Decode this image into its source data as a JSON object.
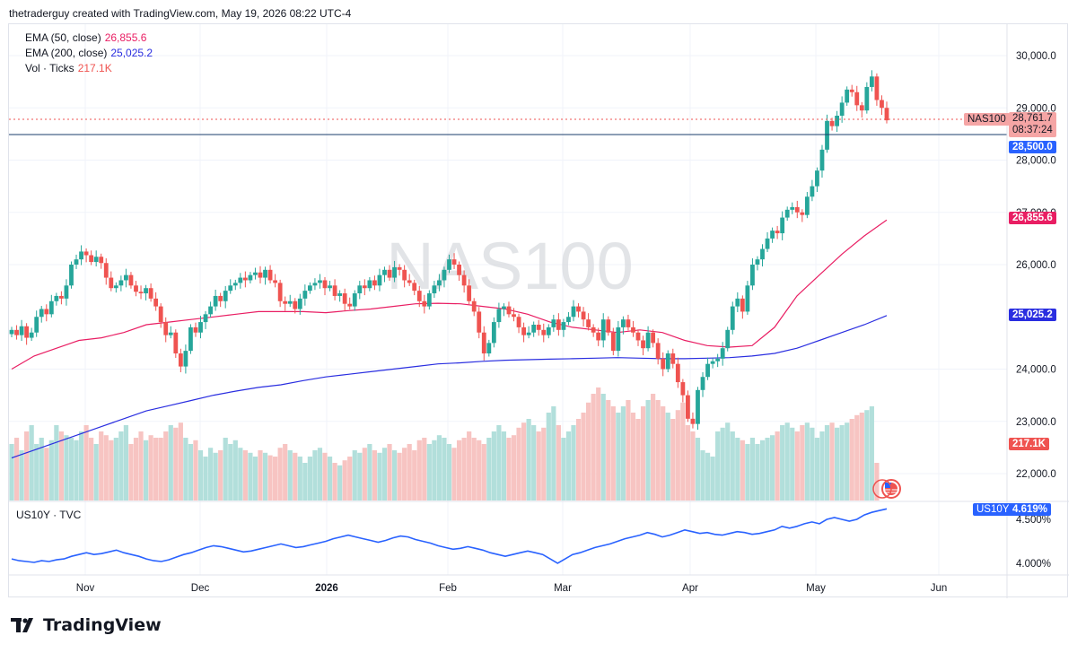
{
  "header": {
    "text": "thetraderguy created with TradingView.com, May 19, 2026 08:22 UTC-4"
  },
  "watermark": "NAS100",
  "legend": {
    "ema50": {
      "label": "EMA (50, close)",
      "value": "26,855.6",
      "color": "#e91e63"
    },
    "ema200": {
      "label": "EMA (200, close)",
      "value": "25,025.2",
      "color": "#2a2ee0"
    },
    "vol": {
      "label": "Vol · Ticks",
      "value": "217.1K",
      "color": "#ef5350"
    }
  },
  "price_labels": {
    "symbol_tag": "NAS100",
    "last_price": "28,761.7",
    "countdown": "08:37:24",
    "horizontal_line": "28,500.0",
    "ema50": "26,855.6",
    "ema200": "25,025.2",
    "volume": "217.1K"
  },
  "lower_pane": {
    "title": "US10Y · TVC",
    "symbol_tag": "US10Y",
    "value": "4.619%",
    "ticks": [
      "4.500%",
      "4.000%"
    ]
  },
  "branding": {
    "name": "TradingView"
  },
  "colors": {
    "up": "#26a69a",
    "down": "#ef5350",
    "ema50": "#e91e63",
    "ema200": "#2a2ee0",
    "us10y": "#2962ff"
  },
  "chart_data": {
    "type": "candlestick",
    "y_ticks": [
      "30,000.0",
      "29,000.0",
      "28,000.0",
      "27,000.0",
      "26,000.0",
      "24,000.0",
      "23,000.0",
      "22,000.0"
    ],
    "y_range": [
      21500,
      30600
    ],
    "x_ticks": [
      "Nov",
      "Dec",
      "2026",
      "Feb",
      "Mar",
      "Apr",
      "May",
      "Jun"
    ],
    "horizontal_line_level": 28500,
    "candles_close": [
      24750,
      24650,
      24820,
      24600,
      24700,
      25000,
      25150,
      25050,
      25300,
      25400,
      25350,
      25600,
      26000,
      26100,
      26250,
      26180,
      26050,
      26150,
      26030,
      25750,
      25550,
      25600,
      25700,
      25800,
      25600,
      25480,
      25450,
      25550,
      25350,
      25200,
      24900,
      24650,
      24700,
      24300,
      24050,
      24350,
      24800,
      24700,
      24900,
      25050,
      25200,
      25400,
      25300,
      25500,
      25600,
      25650,
      25750,
      25700,
      25800,
      25850,
      25750,
      25900,
      25700,
      25650,
      25300,
      25250,
      25300,
      25150,
      25350,
      25500,
      25600,
      25650,
      25700,
      25550,
      25600,
      25400,
      25450,
      25250,
      25200,
      25450,
      25600,
      25550,
      25700,
      25600,
      25800,
      25900,
      25750,
      25950,
      25900,
      25700,
      25650,
      25500,
      25300,
      25200,
      25450,
      25600,
      25700,
      25900,
      26100,
      26000,
      25800,
      25600,
      25300,
      25100,
      24700,
      24300,
      24500,
      24900,
      25150,
      25200,
      25050,
      25000,
      24800,
      24650,
      24700,
      24850,
      24750,
      24650,
      24800,
      24950,
      24750,
      24900,
      25000,
      25200,
      25100,
      24950,
      24800,
      24700,
      24550,
      24950,
      24700,
      24350,
      24800,
      24950,
      24800,
      24700,
      24550,
      24400,
      24700,
      24500,
      24200,
      24000,
      24300,
      24100,
      23750,
      23500,
      23050,
      22950,
      23600,
      23850,
      24100,
      24150,
      24200,
      24400,
      24750,
      25200,
      25350,
      25100,
      25600,
      26000,
      26100,
      26300,
      26500,
      26650,
      26600,
      26900,
      27050,
      27100,
      27000,
      26950,
      27300,
      27500,
      27800,
      28200,
      28750,
      28650,
      28850,
      29100,
      29350,
      29300,
      29050,
      28950,
      29400,
      29600,
      29150,
      29000,
      28762
    ],
    "ema50": [
      24000,
      24250,
      24400,
      24550,
      24600,
      24700,
      24850,
      24900,
      24950,
      25000,
      25050,
      25100,
      25100,
      25100,
      25080,
      25120,
      25150,
      25200,
      25250,
      25260,
      25250,
      25200,
      25150,
      25050,
      24900,
      24800,
      24750,
      24700,
      24750,
      24700,
      24550,
      24450,
      24420,
      24450,
      24800,
      25400,
      25800,
      26200,
      26550,
      26855.6
    ],
    "ema200": [
      22300,
      22450,
      22600,
      22750,
      22900,
      23050,
      23200,
      23300,
      23400,
      23500,
      23580,
      23650,
      23700,
      23780,
      23850,
      23900,
      23950,
      24000,
      24050,
      24100,
      24120,
      24150,
      24170,
      24180,
      24190,
      24200,
      24210,
      24220,
      24210,
      24200,
      24200,
      24210,
      24220,
      24250,
      24300,
      24400,
      24550,
      24700,
      24850,
      25025.2
    ],
    "volume": [
      0.45,
      0.5,
      0.4,
      0.55,
      0.6,
      0.45,
      0.5,
      0.42,
      0.48,
      0.6,
      0.55,
      0.52,
      0.5,
      0.48,
      0.55,
      0.6,
      0.5,
      0.45,
      0.55,
      0.52,
      0.48,
      0.5,
      0.55,
      0.6,
      0.45,
      0.5,
      0.55,
      0.48,
      0.52,
      0.5,
      0.5,
      0.55,
      0.6,
      0.58,
      0.62,
      0.5,
      0.45,
      0.48,
      0.4,
      0.35,
      0.42,
      0.38,
      0.4,
      0.5,
      0.45,
      0.48,
      0.42,
      0.4,
      0.38,
      0.35,
      0.4,
      0.38,
      0.36,
      0.35,
      0.42,
      0.45,
      0.4,
      0.38,
      0.35,
      0.3,
      0.35,
      0.4,
      0.42,
      0.38,
      0.35,
      0.3,
      0.28,
      0.32,
      0.35,
      0.4,
      0.38,
      0.42,
      0.45,
      0.4,
      0.38,
      0.42,
      0.45,
      0.4,
      0.38,
      0.42,
      0.45,
      0.4,
      0.48,
      0.5,
      0.45,
      0.48,
      0.52,
      0.5,
      0.45,
      0.42,
      0.48,
      0.5,
      0.55,
      0.5,
      0.48,
      0.45,
      0.5,
      0.55,
      0.6,
      0.55,
      0.5,
      0.52,
      0.58,
      0.62,
      0.65,
      0.6,
      0.55,
      0.58,
      0.7,
      0.75,
      0.6,
      0.5,
      0.55,
      0.6,
      0.65,
      0.7,
      0.78,
      0.85,
      0.9,
      0.85,
      0.8,
      0.75,
      0.7,
      0.75,
      0.8,
      0.7,
      0.65,
      0.75,
      0.8,
      0.85,
      0.8,
      0.75,
      0.7,
      0.65,
      0.72,
      0.78,
      0.6,
      0.55,
      0.5,
      0.4,
      0.38,
      0.35,
      0.55,
      0.58,
      0.62,
      0.55,
      0.5,
      0.48,
      0.45,
      0.5,
      0.45,
      0.48,
      0.5,
      0.52,
      0.55,
      0.6,
      0.62,
      0.58,
      0.55,
      0.6,
      0.62,
      0.58,
      0.5,
      0.55,
      0.6,
      0.62,
      0.58,
      0.6,
      0.62,
      0.65,
      0.68,
      0.7,
      0.72,
      0.75,
      0.3
    ],
    "us10y": [
      4.05,
      4.03,
      4.02,
      4.01,
      4.03,
      4.02,
      4.04,
      4.05,
      4.08,
      4.1,
      4.12,
      4.1,
      4.11,
      4.13,
      4.15,
      4.12,
      4.1,
      4.08,
      4.05,
      4.03,
      4.02,
      4.04,
      4.07,
      4.1,
      4.12,
      4.15,
      4.18,
      4.2,
      4.19,
      4.17,
      4.15,
      4.13,
      4.14,
      4.16,
      4.18,
      4.2,
      4.22,
      4.2,
      4.18,
      4.19,
      4.21,
      4.23,
      4.25,
      4.28,
      4.3,
      4.32,
      4.3,
      4.28,
      4.26,
      4.24,
      4.26,
      4.29,
      4.31,
      4.3,
      4.27,
      4.25,
      4.23,
      4.2,
      4.18,
      4.16,
      4.17,
      4.19,
      4.17,
      4.15,
      4.12,
      4.1,
      4.08,
      4.1,
      4.12,
      4.14,
      4.12,
      4.1,
      4.05,
      4.0,
      4.05,
      4.1,
      4.12,
      4.15,
      4.18,
      4.2,
      4.22,
      4.25,
      4.28,
      4.3,
      4.32,
      4.35,
      4.33,
      4.3,
      4.32,
      4.35,
      4.38,
      4.36,
      4.34,
      4.35,
      4.33,
      4.32,
      4.34,
      4.36,
      4.35,
      4.33,
      4.34,
      4.36,
      4.38,
      4.42,
      4.4,
      4.42,
      4.45,
      4.47,
      4.45,
      4.5,
      4.52,
      4.5,
      4.48,
      4.5,
      4.55,
      4.58,
      4.6,
      4.619
    ]
  }
}
